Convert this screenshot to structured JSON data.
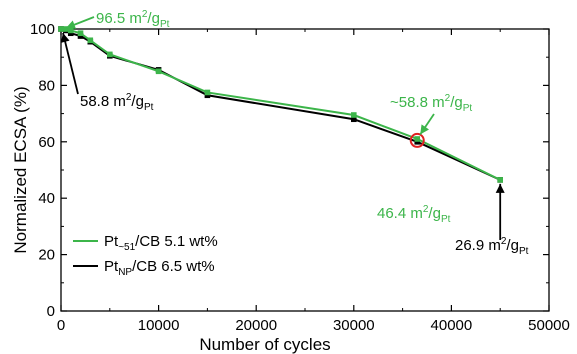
{
  "chart_data": {
    "type": "line",
    "xlabel": "Number of cycles",
    "ylabel": "Normalized ECSA (%)",
    "xlim": [
      0,
      50000
    ],
    "ylim": [
      0,
      100
    ],
    "xticks": [
      "0",
      "10000",
      "20000",
      "30000",
      "40000",
      "50000"
    ],
    "yticks": [
      "0",
      "20",
      "40",
      "60",
      "80",
      "100"
    ],
    "grid": false,
    "legend_position": "bottom-left",
    "series": [
      {
        "name_main": "Pt",
        "name_sub": "~51",
        "name_rest": "/CB 5.1 wt%",
        "color": "#3cb54a",
        "x": [
          0,
          500,
          1000,
          2000,
          3000,
          5000,
          10000,
          15000,
          30000,
          36500,
          45000
        ],
        "y": [
          100,
          100,
          99.5,
          98.5,
          96,
          91,
          85,
          77.5,
          69.5,
          61,
          46.5
        ]
      },
      {
        "name_main": "Pt",
        "name_sub": "NP",
        "name_rest": "/CB 6.5 wt%",
        "color": "#000000",
        "x": [
          0,
          500,
          1000,
          2000,
          3000,
          5000,
          10000,
          15000,
          30000,
          36500,
          45000
        ],
        "y": [
          100,
          99.5,
          98.5,
          97.5,
          95.5,
          90.5,
          85.5,
          76.5,
          68,
          60,
          46.5
        ]
      }
    ],
    "highlight": {
      "x": 36500,
      "y": 60.5,
      "color": "#e02020"
    },
    "annotations": [
      {
        "id": "green-start",
        "main": "96.5 m",
        "sup": "2",
        "mid": "/g",
        "sub": "Pt",
        "prefix": "",
        "color": "#3cb54a"
      },
      {
        "id": "black-start",
        "main": "58.8 m",
        "sup": "2",
        "mid": "/g",
        "sub": "Pt",
        "prefix": "",
        "color": "#000000"
      },
      {
        "id": "green-mid",
        "main": "~58.8 m",
        "sup": "2",
        "mid": "/g",
        "sub": "Pt",
        "prefix": "",
        "color": "#3cb54a"
      },
      {
        "id": "green-end",
        "main": "46.4 m",
        "sup": "2",
        "mid": "/g",
        "sub": "Pt",
        "prefix": "",
        "color": "#3cb54a"
      },
      {
        "id": "black-end",
        "main": "26.9 m",
        "sup": "2",
        "mid": "/g",
        "sub": "Pt",
        "prefix": "",
        "color": "#000000"
      }
    ]
  }
}
